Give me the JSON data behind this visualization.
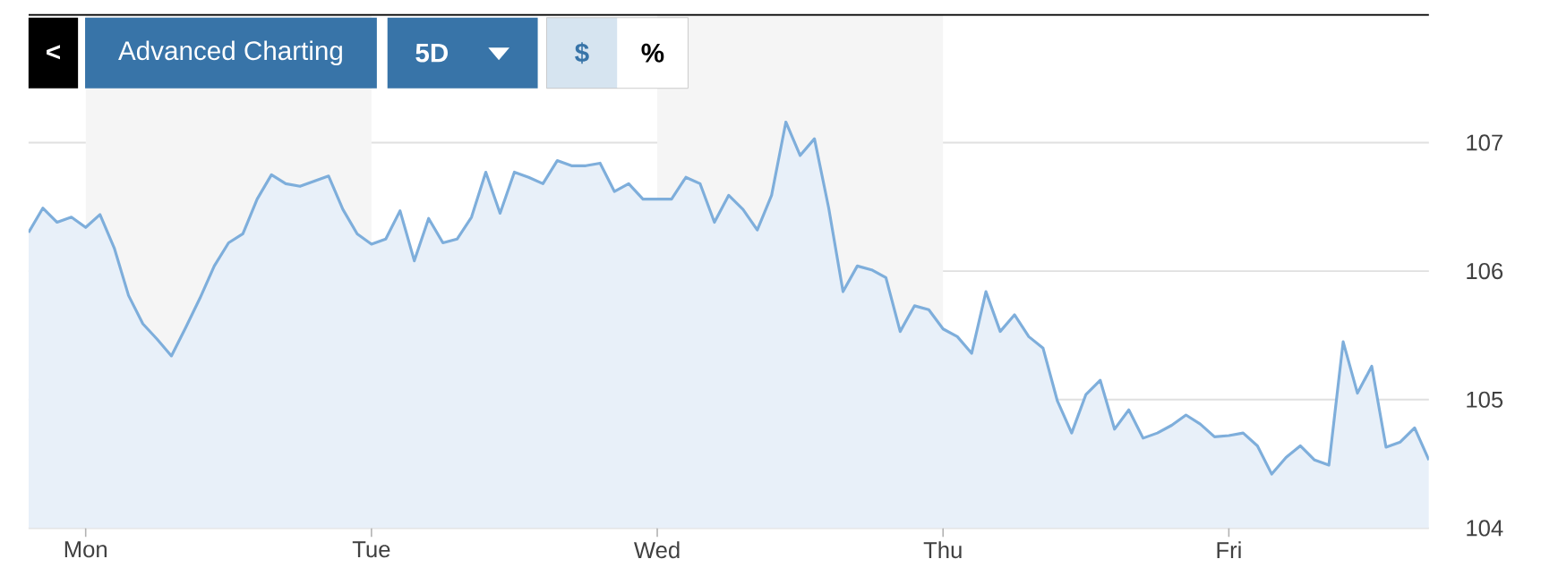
{
  "chart_data": {
    "type": "area",
    "annotations": [
      "<",
      "Advanced Charting",
      "5D",
      "$",
      "%"
    ],
    "categories": [
      null,
      null,
      null,
      null,
      "Mon",
      null,
      null,
      null,
      null,
      null,
      null,
      null,
      null,
      null,
      null,
      null,
      null,
      null,
      null,
      null,
      null,
      null,
      null,
      null,
      "Tue",
      null,
      null,
      null,
      null,
      null,
      null,
      null,
      null,
      null,
      null,
      null,
      null,
      null,
      null,
      null,
      null,
      null,
      null,
      null,
      "Wed",
      null,
      null,
      null,
      null,
      null,
      null,
      null,
      null,
      null,
      null,
      null,
      null,
      null,
      null,
      null,
      null,
      null,
      null,
      null,
      "Thu",
      null,
      null,
      null,
      null,
      null,
      null,
      null,
      null,
      null,
      null,
      null,
      null,
      null,
      null,
      null,
      null,
      null,
      null,
      null,
      "Fri",
      null,
      null,
      null,
      null,
      null,
      null,
      null,
      null,
      null,
      null,
      null,
      null,
      null,
      null
    ],
    "series": [
      {
        "color": "#7eaedb",
        "values": [
          106.3,
          106.49,
          106.38,
          106.42,
          106.34,
          106.44,
          106.18,
          105.81,
          105.59,
          105.47,
          105.34,
          105.56,
          105.79,
          106.04,
          106.22,
          106.29,
          106.56,
          106.75,
          106.68,
          106.66,
          106.7,
          106.74,
          106.48,
          106.29,
          106.21,
          106.25,
          106.47,
          106.08,
          106.41,
          106.22,
          106.25,
          106.42,
          106.77,
          106.45,
          106.77,
          106.73,
          106.68,
          106.86,
          106.82,
          106.82,
          106.84,
          106.62,
          106.68,
          106.56,
          106.56,
          106.56,
          106.73,
          106.68,
          106.38,
          106.59,
          106.48,
          106.32,
          106.59,
          107.16,
          106.9,
          107.03,
          106.49,
          105.84,
          106.04,
          106.01,
          105.95,
          105.53,
          105.73,
          105.7,
          105.55,
          105.49,
          105.36,
          105.84,
          105.53,
          105.66,
          105.49,
          105.4,
          104.99,
          104.74,
          105.04,
          105.15,
          104.77,
          104.92,
          104.7,
          104.74,
          104.8,
          104.88,
          104.81,
          104.71,
          104.72,
          104.74,
          104.64,
          104.42,
          104.55,
          104.64,
          104.53,
          104.49,
          105.45,
          105.05,
          105.26,
          104.63,
          104.67,
          104.78,
          104.53
        ]
      }
    ],
    "ylim": [
      104,
      108
    ],
    "yticks": [
      104,
      105,
      106,
      107
    ],
    "grid": "y",
    "bands": [
      {
        "axis": "x",
        "from": "Mon",
        "to": "Tue",
        "color": "#f5f5f5"
      },
      {
        "axis": "x",
        "from": "Wed",
        "to": "Thu",
        "color": "#f5f5f5"
      }
    ]
  }
}
